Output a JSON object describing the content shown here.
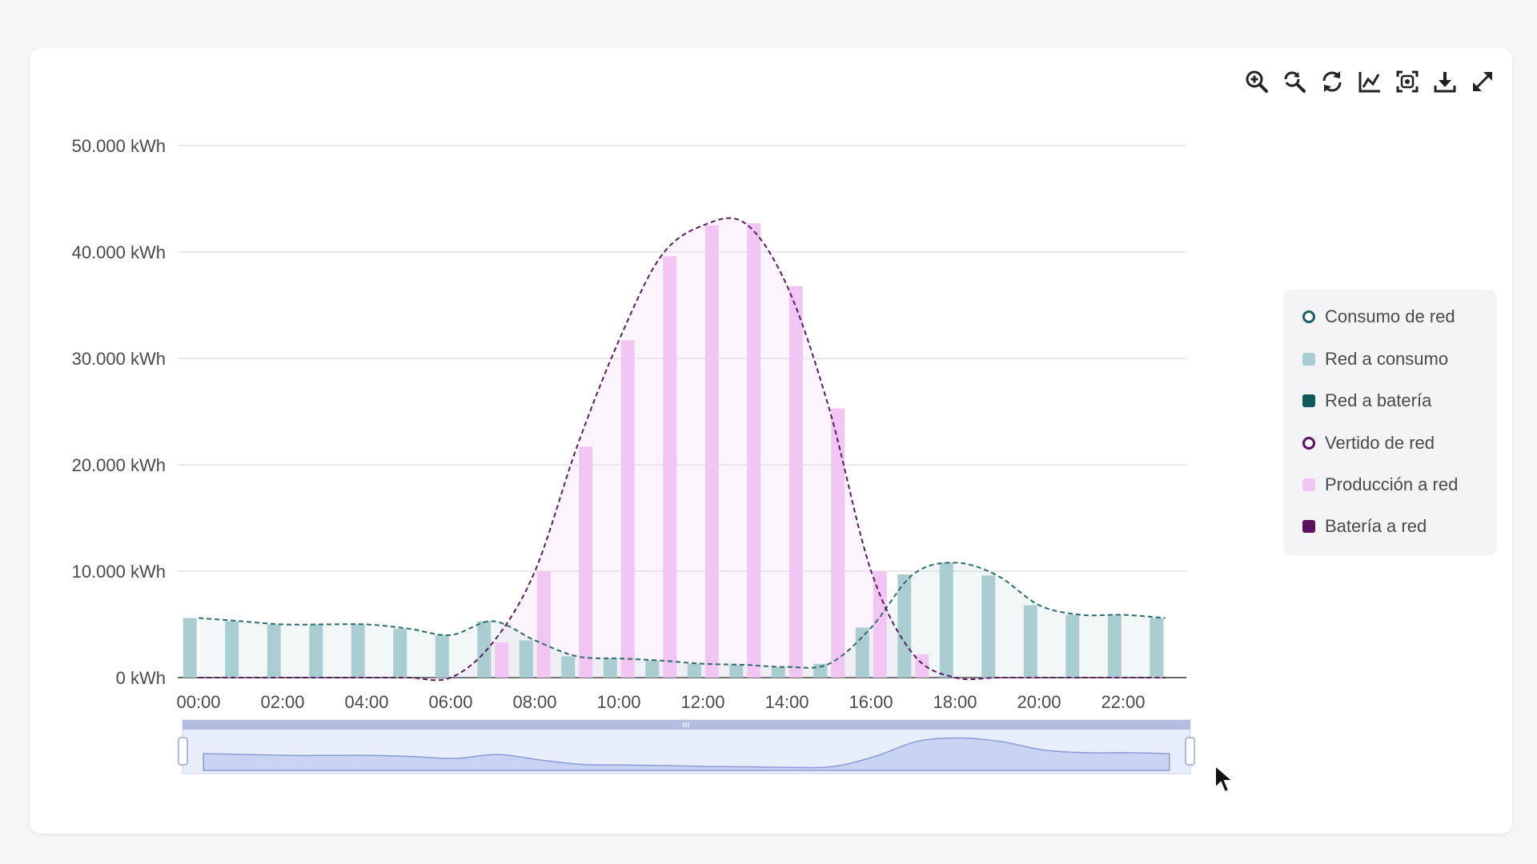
{
  "toolbar": {
    "icons": [
      "zoom-in-icon",
      "zoom-reset-icon",
      "refresh-icon",
      "line-chart-icon",
      "screenshot-icon",
      "download-icon",
      "fullscreen-icon"
    ]
  },
  "colors": {
    "consumo_line": "#2e6b6b",
    "red_a_consumo": "#a9cdd1",
    "red_a_bateria": "#0d5b5a",
    "vertido_line": "#5c1a62",
    "produccion_a_red": "#f2c6f3",
    "bateria_a_red": "#5c1060"
  },
  "legend": [
    {
      "label": "Consumo de red",
      "marker": "circle",
      "color": "#1f5f66"
    },
    {
      "label": "Red a consumo",
      "marker": "square",
      "color": "#a9cdd1"
    },
    {
      "label": "Red a batería",
      "marker": "square",
      "color": "#0d5b5a"
    },
    {
      "label": "Vertido de red",
      "marker": "circle",
      "color": "#5c1060"
    },
    {
      "label": "Producción a red",
      "marker": "square",
      "color": "#f2c6f3"
    },
    {
      "label": "Batería a red",
      "marker": "square",
      "color": "#5c1060"
    }
  ],
  "chart_data": {
    "type": "bar",
    "ylim": [
      0,
      50000
    ],
    "y_ticks": [
      "0 kWh",
      "10.000 kWh",
      "20.000 kWh",
      "30.000 kWh",
      "40.000 kWh",
      "50.000 kWh"
    ],
    "x_ticks": [
      "00:00",
      "02:00",
      "04:00",
      "06:00",
      "08:00",
      "10:00",
      "12:00",
      "14:00",
      "16:00",
      "18:00",
      "20:00",
      "22:00"
    ],
    "grid": true,
    "legend_position": "right",
    "categories": [
      "00:00",
      "01:00",
      "02:00",
      "03:00",
      "04:00",
      "05:00",
      "06:00",
      "07:00",
      "08:00",
      "09:00",
      "10:00",
      "11:00",
      "12:00",
      "13:00",
      "14:00",
      "15:00",
      "16:00",
      "17:00",
      "18:00",
      "19:00",
      "20:00",
      "21:00",
      "22:00",
      "23:00"
    ],
    "series": [
      {
        "name": "Red a consumo",
        "type": "bar",
        "values": [
          5600,
          5300,
          5000,
          5000,
          5000,
          4600,
          4000,
          5300,
          3500,
          2000,
          1800,
          1600,
          1300,
          1200,
          1000,
          1300,
          4700,
          9700,
          10800,
          9600,
          6800,
          5900,
          5900,
          5600
        ]
      },
      {
        "name": "Producción a red",
        "type": "bar",
        "values": [
          0,
          0,
          0,
          0,
          0,
          0,
          0,
          3300,
          10000,
          21700,
          31700,
          39600,
          42500,
          42700,
          36800,
          25300,
          10000,
          2200,
          0,
          0,
          0,
          0,
          0,
          0
        ]
      },
      {
        "name": "Consumo de red",
        "type": "line",
        "values": [
          5600,
          5300,
          5000,
          5000,
          5000,
          4600,
          4000,
          5300,
          3500,
          2000,
          1800,
          1600,
          1300,
          1200,
          1000,
          1300,
          4700,
          9700,
          10800,
          9600,
          6800,
          5900,
          5900,
          5600
        ]
      },
      {
        "name": "Vertido de red",
        "type": "line",
        "values": [
          0,
          0,
          0,
          0,
          0,
          0,
          0,
          3300,
          10000,
          21700,
          31700,
          39600,
          42500,
          42700,
          36800,
          25300,
          10000,
          2200,
          0,
          0,
          0,
          0,
          0,
          0
        ]
      },
      {
        "name": "Red a batería",
        "type": "bar",
        "values": [
          0,
          0,
          0,
          0,
          0,
          0,
          0,
          0,
          0,
          0,
          0,
          0,
          0,
          0,
          0,
          0,
          0,
          0,
          0,
          0,
          0,
          0,
          0,
          0
        ]
      },
      {
        "name": "Batería a red",
        "type": "bar",
        "values": [
          0,
          0,
          0,
          0,
          0,
          0,
          0,
          0,
          0,
          0,
          0,
          0,
          0,
          0,
          0,
          0,
          0,
          0,
          0,
          0,
          0,
          0,
          0,
          0
        ]
      }
    ]
  }
}
